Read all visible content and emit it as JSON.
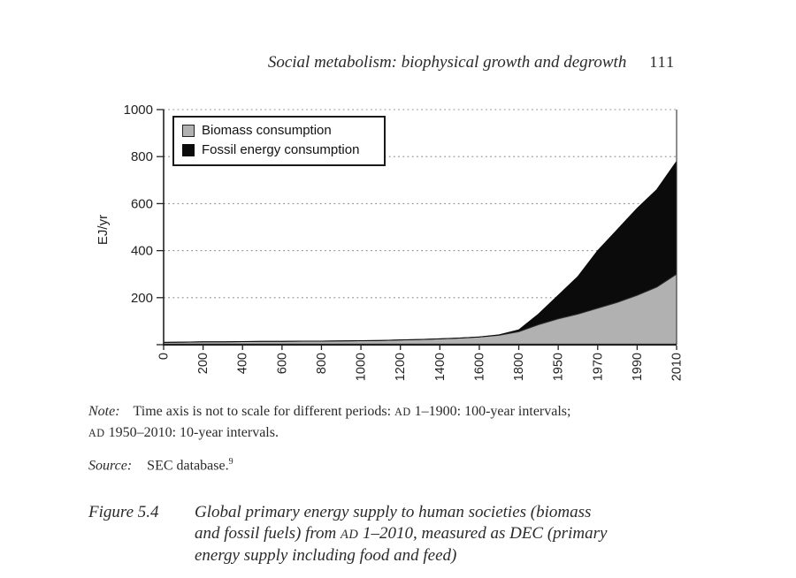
{
  "header": {
    "title": "Social metabolism: biophysical growth and degrowth",
    "page_number": "111"
  },
  "chart_data": {
    "type": "area",
    "stacked": true,
    "title": "",
    "xlabel": "",
    "ylabel": "EJ/yr",
    "ylim": [
      0,
      1000
    ],
    "yticks": [
      0,
      200,
      400,
      600,
      800,
      1000
    ],
    "grid": "dotted horizontal gridlines at each y tick",
    "legend_position": "top-left",
    "x_axis_note": "non-linear time axis: 100-year intervals AD 1-1900, then 10-year intervals 1950-2010, equal spacing per interval",
    "x_tick_labels": [
      "0",
      "200",
      "400",
      "600",
      "800",
      "1000",
      "1200",
      "1400",
      "1600",
      "1800",
      "1950",
      "1970",
      "1990",
      "2010"
    ],
    "years": [
      1,
      100,
      200,
      300,
      400,
      500,
      600,
      700,
      800,
      900,
      1000,
      1100,
      1200,
      1300,
      1400,
      1500,
      1600,
      1700,
      1800,
      1900,
      1950,
      1960,
      1970,
      1980,
      1990,
      2000,
      2010
    ],
    "series": [
      {
        "name": "Biomass consumption",
        "color": "#b1b1b1",
        "values": [
          10,
          11,
          12,
          12,
          13,
          14,
          14,
          15,
          15,
          16,
          17,
          18,
          20,
          22,
          25,
          28,
          33,
          40,
          55,
          85,
          110,
          130,
          155,
          180,
          210,
          245,
          300
        ]
      },
      {
        "name": "Fossil energy consumption",
        "color": "#0b0b0b",
        "values": [
          0,
          0,
          0,
          0,
          0,
          0,
          0,
          0,
          0,
          0,
          0,
          0,
          0,
          0,
          0,
          0,
          0,
          2,
          8,
          45,
          100,
          160,
          245,
          310,
          370,
          415,
          480
        ]
      }
    ]
  },
  "note": {
    "label": "Note:",
    "line1_pre_ad": "Time axis is not to scale for different periods: ",
    "ad1": "AD",
    "line1_post_ad": " 1–1900: 100-year intervals;",
    "ad2": "AD",
    "line2_post_ad": " 1950–2010: 10-year intervals."
  },
  "source": {
    "label": "Source:",
    "text": "SEC database.",
    "footnote_ref": "9"
  },
  "caption": {
    "label": "Figure 5.4",
    "line1": "Global primary energy supply to human societies (biomass",
    "line2_pre_ad": "and fossil fuels) from ",
    "ad": "AD",
    "line2_post_ad": " 1–2010, measured as DEC (primary",
    "line3": "energy supply including food and feed)"
  }
}
